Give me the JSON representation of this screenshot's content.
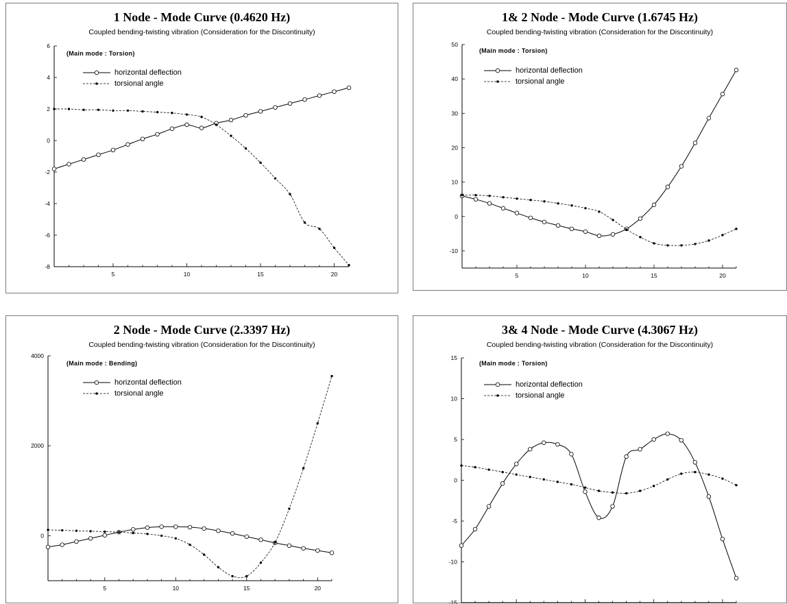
{
  "colors": {
    "line": "#000000",
    "frame": "#7a7a7a"
  },
  "legend": {
    "deflection_label": "horizontal deflection",
    "torsion_label": "torsional angle"
  },
  "subtitle": "Coupled bending-twisting vibration (Consideration for the Discontinuity)",
  "chart_data": [
    {
      "type": "line",
      "title": "1 Node - Mode Curve (0.4620 Hz)",
      "annotation": "(Main mode : Torsion)",
      "xlim": [
        1,
        21
      ],
      "ylim": [
        -8,
        6
      ],
      "xticks": [
        5,
        10,
        15,
        20
      ],
      "yticks": [
        -8,
        -6,
        -4,
        -2,
        0,
        2,
        4,
        6
      ],
      "x": [
        1,
        2,
        3,
        4,
        5,
        6,
        7,
        8,
        9,
        10,
        11,
        12,
        13,
        14,
        15,
        16,
        17,
        18,
        19,
        20,
        21
      ],
      "series": [
        {
          "name": "horizontal deflection",
          "style": "solid",
          "marker": "open-circle",
          "values": [
            -1.8,
            -1.5,
            -1.2,
            -0.9,
            -0.6,
            -0.25,
            0.1,
            0.4,
            0.75,
            1.0,
            0.8,
            1.1,
            1.3,
            1.6,
            1.85,
            2.1,
            2.35,
            2.6,
            2.85,
            3.1,
            3.35
          ]
        },
        {
          "name": "torsional angle",
          "style": "dashed",
          "marker": "small-dot",
          "values": [
            2.0,
            2.0,
            1.95,
            1.95,
            1.9,
            1.9,
            1.85,
            1.8,
            1.75,
            1.65,
            1.5,
            1.0,
            0.3,
            -0.5,
            -1.4,
            -2.4,
            -3.4,
            -5.2,
            -5.6,
            -6.8,
            -7.9
          ]
        }
      ]
    },
    {
      "type": "line",
      "title": "1& 2 Node - Mode Curve (1.6745 Hz)",
      "annotation": "(Main mode : Torsion)",
      "xlim": [
        1,
        21
      ],
      "ylim": [
        -15,
        50
      ],
      "xticks": [
        5,
        10,
        15,
        20
      ],
      "yticks": [
        -10,
        0,
        10,
        20,
        30,
        40,
        50
      ],
      "x": [
        1,
        2,
        3,
        4,
        5,
        6,
        7,
        8,
        9,
        10,
        11,
        12,
        13,
        14,
        15,
        16,
        17,
        18,
        19,
        20,
        21
      ],
      "series": [
        {
          "name": "horizontal deflection",
          "style": "solid",
          "marker": "open-circle",
          "values": [
            6.0,
            5.0,
            3.8,
            2.4,
            1.0,
            -0.4,
            -1.6,
            -2.6,
            -3.6,
            -4.4,
            -5.6,
            -5.2,
            -3.6,
            -0.6,
            3.4,
            8.6,
            14.6,
            21.4,
            28.6,
            35.6,
            42.6
          ]
        },
        {
          "name": "torsional angle",
          "style": "dashed",
          "marker": "small-dot",
          "values": [
            6.2,
            6.2,
            6.0,
            5.6,
            5.2,
            4.8,
            4.4,
            3.8,
            3.2,
            2.4,
            1.4,
            -1.0,
            -3.8,
            -6.0,
            -7.8,
            -8.4,
            -8.4,
            -8.0,
            -7.0,
            -5.4,
            -3.6
          ]
        }
      ]
    },
    {
      "type": "line",
      "title": "2 Node - Mode Curve (2.3397 Hz)",
      "annotation": "(Main mode : Bending)",
      "xlim": [
        1,
        21
      ],
      "ylim": [
        -1000,
        4000
      ],
      "xticks": [
        5,
        10,
        15,
        20
      ],
      "yticks": [
        0,
        2000,
        4000
      ],
      "x": [
        1,
        2,
        3,
        4,
        5,
        6,
        7,
        8,
        9,
        10,
        11,
        12,
        13,
        14,
        15,
        16,
        17,
        18,
        19,
        20,
        21
      ],
      "series": [
        {
          "name": "horizontal deflection",
          "style": "solid",
          "marker": "open-circle",
          "values": [
            -250,
            -200,
            -130,
            -60,
            10,
            80,
            140,
            180,
            200,
            200,
            190,
            160,
            110,
            50,
            -20,
            -90,
            -160,
            -220,
            -280,
            -330,
            -380
          ]
        },
        {
          "name": "torsional angle",
          "style": "dashed",
          "marker": "small-dot",
          "values": [
            130,
            120,
            110,
            100,
            90,
            80,
            60,
            40,
            0,
            -60,
            -200,
            -420,
            -700,
            -900,
            -900,
            -600,
            -150,
            600,
            1500,
            2500,
            3550
          ]
        }
      ]
    },
    {
      "type": "line",
      "title": "3& 4 Node - Mode Curve (4.3067 Hz)",
      "annotation": "(Main mode : Torsion)",
      "xlim": [
        1,
        21
      ],
      "ylim": [
        -15,
        15
      ],
      "xticks": [
        5,
        10,
        15,
        20
      ],
      "yticks": [
        -15,
        -10,
        -5,
        0,
        5,
        10,
        15
      ],
      "x": [
        1,
        2,
        3,
        4,
        5,
        6,
        7,
        8,
        9,
        10,
        11,
        12,
        13,
        14,
        15,
        16,
        17,
        18,
        19,
        20,
        21
      ],
      "series": [
        {
          "name": "horizontal deflection",
          "style": "solid",
          "marker": "open-circle",
          "values": [
            -8.0,
            -6.0,
            -3.2,
            -0.4,
            2.0,
            3.8,
            4.6,
            4.4,
            3.2,
            -1.4,
            -4.6,
            -3.2,
            2.9,
            3.8,
            5.0,
            5.7,
            4.9,
            2.2,
            -2.0,
            -7.2,
            -12.0
          ]
        },
        {
          "name": "torsional angle",
          "style": "dashed",
          "marker": "small-dot",
          "values": [
            1.8,
            1.6,
            1.3,
            1.0,
            0.7,
            0.4,
            0.1,
            -0.2,
            -0.5,
            -0.9,
            -1.3,
            -1.5,
            -1.6,
            -1.3,
            -0.7,
            0.1,
            0.8,
            1.0,
            0.7,
            0.2,
            -0.6
          ]
        }
      ]
    }
  ]
}
